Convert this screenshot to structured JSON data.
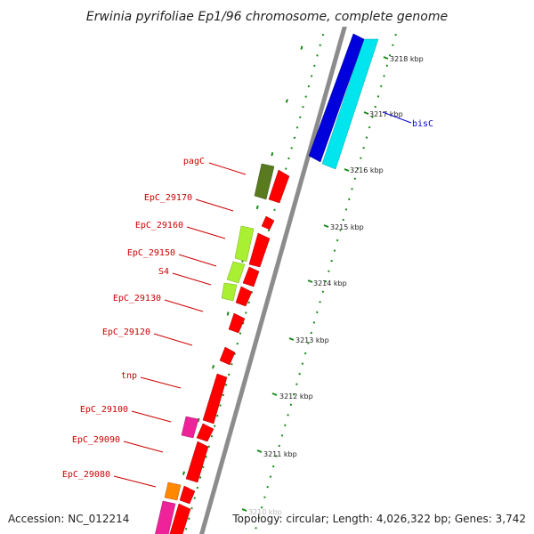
{
  "title": "Erwinia pyrifoliae Ep1/96 chromosome, complete genome",
  "footer": {
    "accession": "Accession: NC_012214",
    "topology": "Topology: circular; Length: 4,026,322 bp; Genes: 3,742"
  },
  "ticks": [
    "3218 kbp",
    "3217 kbp",
    "3216 kbp",
    "3215 kbp",
    "3214 kbp",
    "3213 kbp",
    "3212 kbp",
    "3211 kbp",
    "3210 kbp"
  ],
  "gene_labels": [
    "bisC",
    "pagC",
    "EpC_29170",
    "EpC_29160",
    "EpC_29150",
    "S4",
    "EpC_29130",
    "EpC_29120",
    "tnp",
    "EpC_29100",
    "EpC_29090",
    "EpC_29080"
  ],
  "colors": {
    "backbone": "#8c8c8c",
    "gene_red": "#ff0000",
    "gene_blue": "#0000dd",
    "gene_cyan": "#00e5ee",
    "gene_olive": "#5a7a20",
    "gene_lime": "#aaf032",
    "gene_magenta": "#ee2299",
    "gene_orange": "#ff8800",
    "gc_dots": "#1a8a1a",
    "label_red": "#cc0000",
    "label_blue": "#0000cc"
  }
}
